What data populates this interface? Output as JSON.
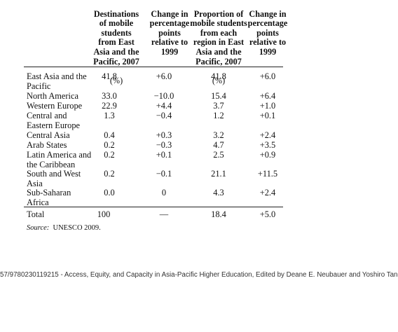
{
  "table": {
    "headers": [
      {
        "text": "Destinations\nof mobile\nstudents\nfrom East\nAsia and the\nPacific, 2007",
        "unit": "(%)"
      },
      {
        "text": "Change in\npercentage\npoints\nrelative to\n1999",
        "unit": ""
      },
      {
        "text": "Proportion of\nmobile students\nfrom each\nregion in East\nAsia and the\nPacific, 2007",
        "unit": "(%)"
      },
      {
        "text": "Change in\npercentage\npoints\nrelative to\n1999",
        "unit": ""
      }
    ],
    "rows": [
      {
        "label": "East Asia and the\nPacific",
        "values": [
          "41.8",
          "+6.0",
          "41.8",
          "+6.0"
        ]
      },
      {
        "label": "North America",
        "values": [
          "33.0",
          "−10.0",
          "15.4",
          "+6.4"
        ]
      },
      {
        "label": "Western Europe",
        "values": [
          "22.9",
          "+4.4",
          "3.7",
          "+1.0"
        ]
      },
      {
        "label": "Central and\nEastern Europe",
        "values": [
          "1.3",
          "−0.4",
          "1.2",
          "+0.1"
        ]
      },
      {
        "label": "Central Asia",
        "values": [
          "0.4",
          "+0.3",
          "3.2",
          "+2.4"
        ]
      },
      {
        "label": "Arab States",
        "values": [
          "0.2",
          "−0.3",
          "4.7",
          "+3.5"
        ]
      },
      {
        "label": "Latin America and\nthe Caribbean",
        "values": [
          "0.2",
          "+0.1",
          "2.5",
          "+0.9"
        ]
      },
      {
        "label": "South and West\nAsia",
        "values": [
          "0.2",
          "−0.1",
          "21.1",
          "+11.5"
        ]
      },
      {
        "label": "Sub-Saharan\nAfrica",
        "values": [
          "0.0",
          "0",
          "4.3",
          "+2.4"
        ]
      },
      {
        "label": "Total",
        "values": [
          "100",
          "—",
          "18.4",
          "+5.0"
        ]
      }
    ]
  },
  "source": {
    "label": "Source:",
    "text": "UNESCO 2009."
  },
  "footer": "57/9780230119215 - Access, Equity, and Capacity in Asia-Pacific Higher Education, Edited by Deane E. Neubauer and Yoshiro Tan"
}
